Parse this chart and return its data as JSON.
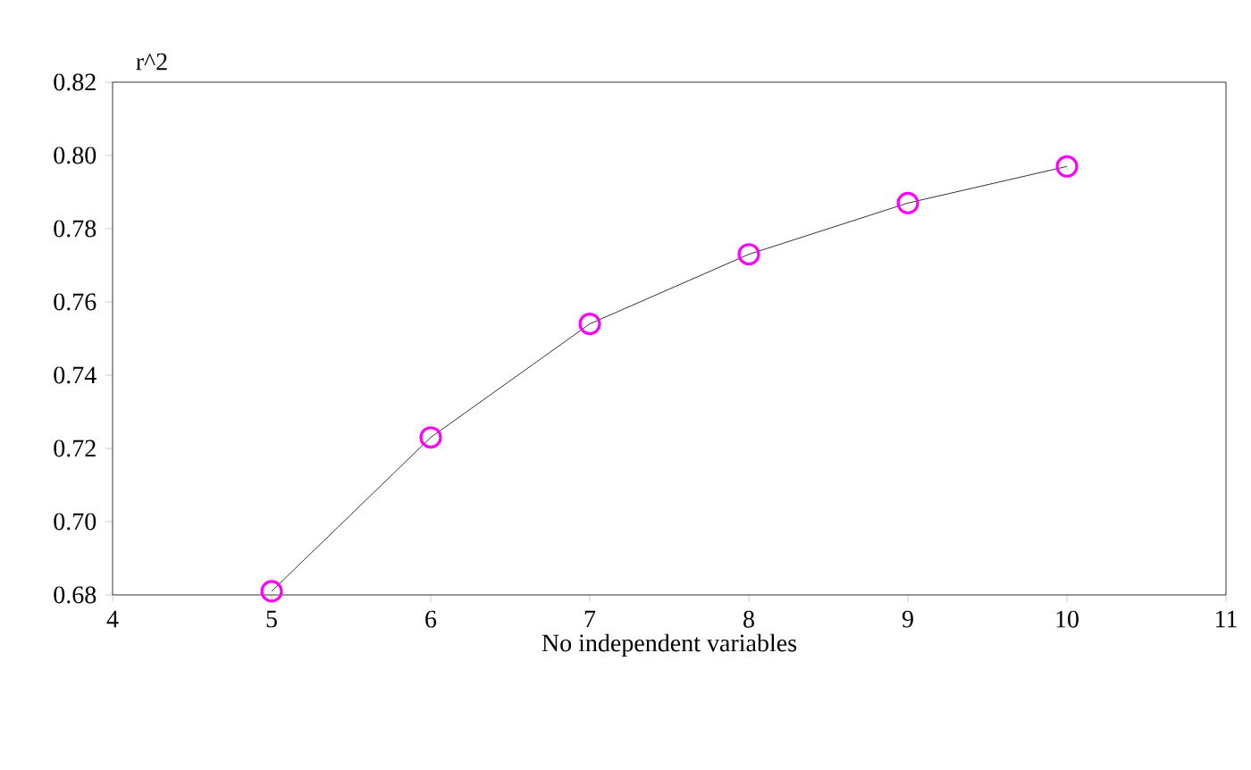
{
  "chart_data": {
    "type": "line",
    "ylabel": "r^2",
    "xlabel": "No independent variables",
    "x": [
      5,
      6,
      7,
      8,
      9,
      10
    ],
    "series": [
      {
        "color": "#ff00ff",
        "values": [
          0.681,
          0.723,
          0.754,
          0.773,
          0.787,
          0.797
        ]
      }
    ],
    "marker": "circle",
    "line_style": "solid",
    "grid": false,
    "xlim": [
      4,
      11
    ],
    "xticks": [
      4,
      5,
      6,
      7,
      8,
      9,
      10,
      11
    ],
    "ylim": [
      0.68,
      0.82
    ],
    "yticks": [
      {
        "value": 0.68,
        "label": "0.68"
      },
      {
        "value": 0.7,
        "label": "0.70"
      },
      {
        "value": 0.72,
        "label": "0.72"
      },
      {
        "value": 0.74,
        "label": "0.74"
      },
      {
        "value": 0.76,
        "label": "0.76"
      },
      {
        "value": 0.78,
        "label": "0.78"
      },
      {
        "value": 0.8,
        "label": "0.80"
      },
      {
        "value": 0.82,
        "label": "0.82"
      }
    ]
  }
}
